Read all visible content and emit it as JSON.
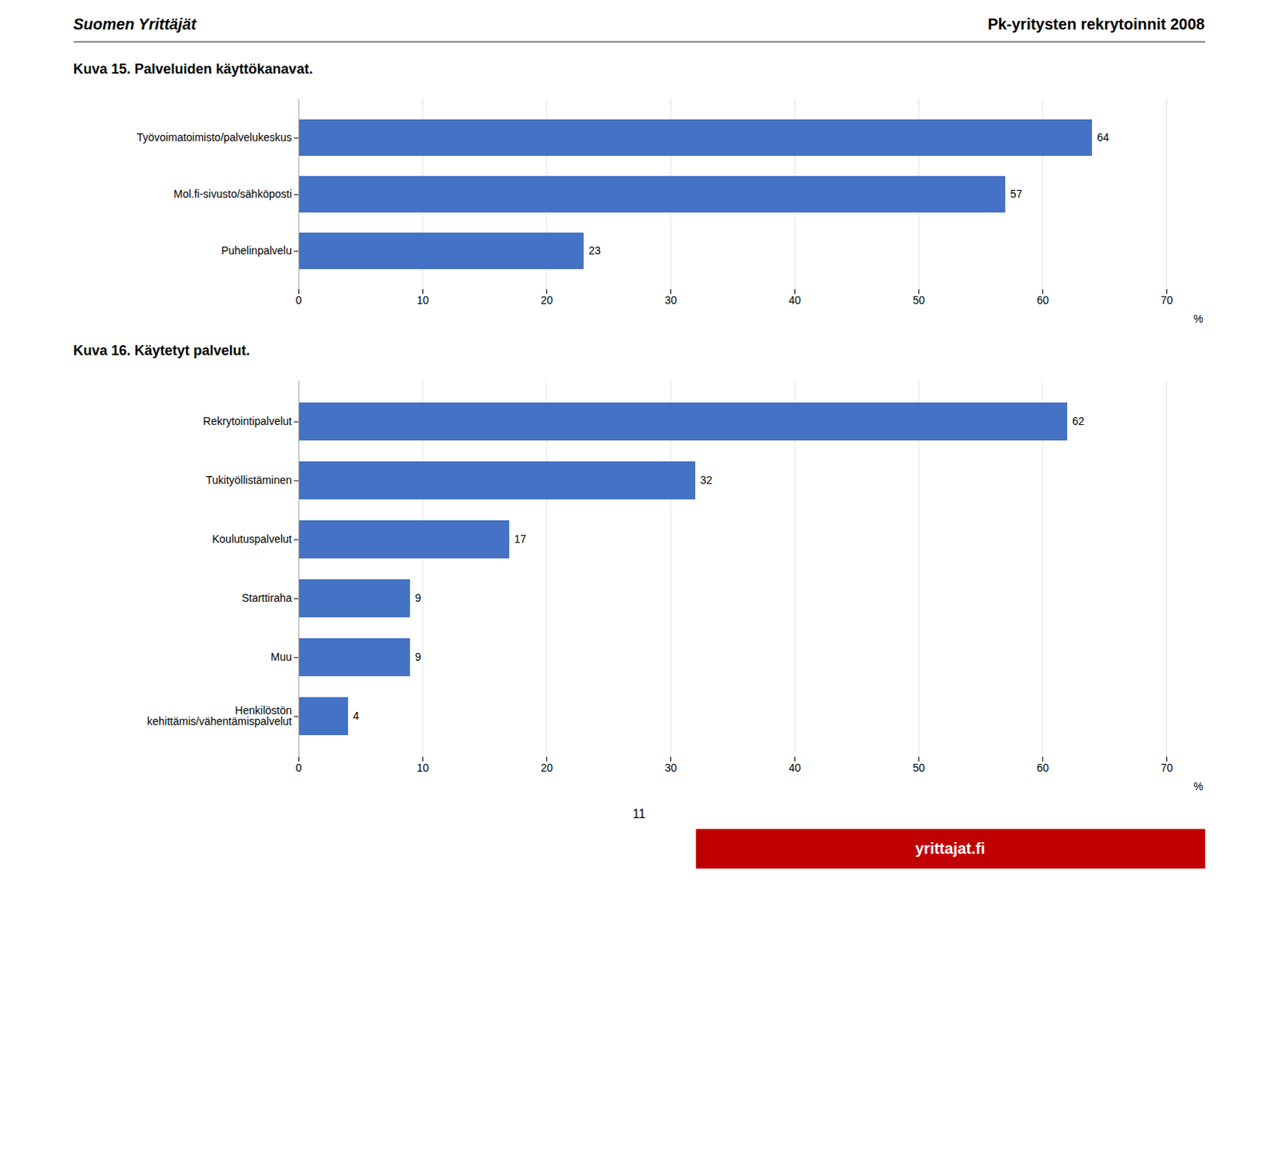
{
  "chart_data": [
    {
      "type": "bar",
      "orientation": "horizontal",
      "title": "Kuva 15. Palveluiden käyttökanavat.",
      "categories": [
        "Työvoimatoimisto/palvelukeskus",
        "Mol.fi-sivusto/sähköposti",
        "Puhelinpalvelu"
      ],
      "values": [
        64,
        57,
        23
      ],
      "color": "#4472C4",
      "xlim": [
        0,
        70
      ],
      "xticks": [
        0,
        10,
        20,
        30,
        40,
        50,
        60,
        70
      ],
      "xlabel": "%",
      "grid": true,
      "data_labels": true,
      "annotations": [
        "Suomen Yrittäjät",
        "Pk-yritysten rekrytoinnit 2008"
      ]
    },
    {
      "type": "bar",
      "orientation": "horizontal",
      "title": "Kuva 16. Käytetyt palvelut.",
      "categories": [
        "Rekrytointipalvelut",
        "Tukityöllistäminen",
        "Koulutuspalvelut",
        "Starttiraha",
        "Muu",
        "Henkilöstön\nkehittämis/vähentämispalvelut"
      ],
      "values": [
        62,
        32,
        17,
        9,
        9,
        4
      ],
      "color": "#4472C4",
      "xlim": [
        0,
        70
      ],
      "xticks": [
        0,
        10,
        20,
        30,
        40,
        50,
        60,
        70
      ],
      "xlabel": "%",
      "grid": true,
      "data_labels": true,
      "annotations": [
        "11",
        "yrittajat.fi"
      ]
    }
  ]
}
